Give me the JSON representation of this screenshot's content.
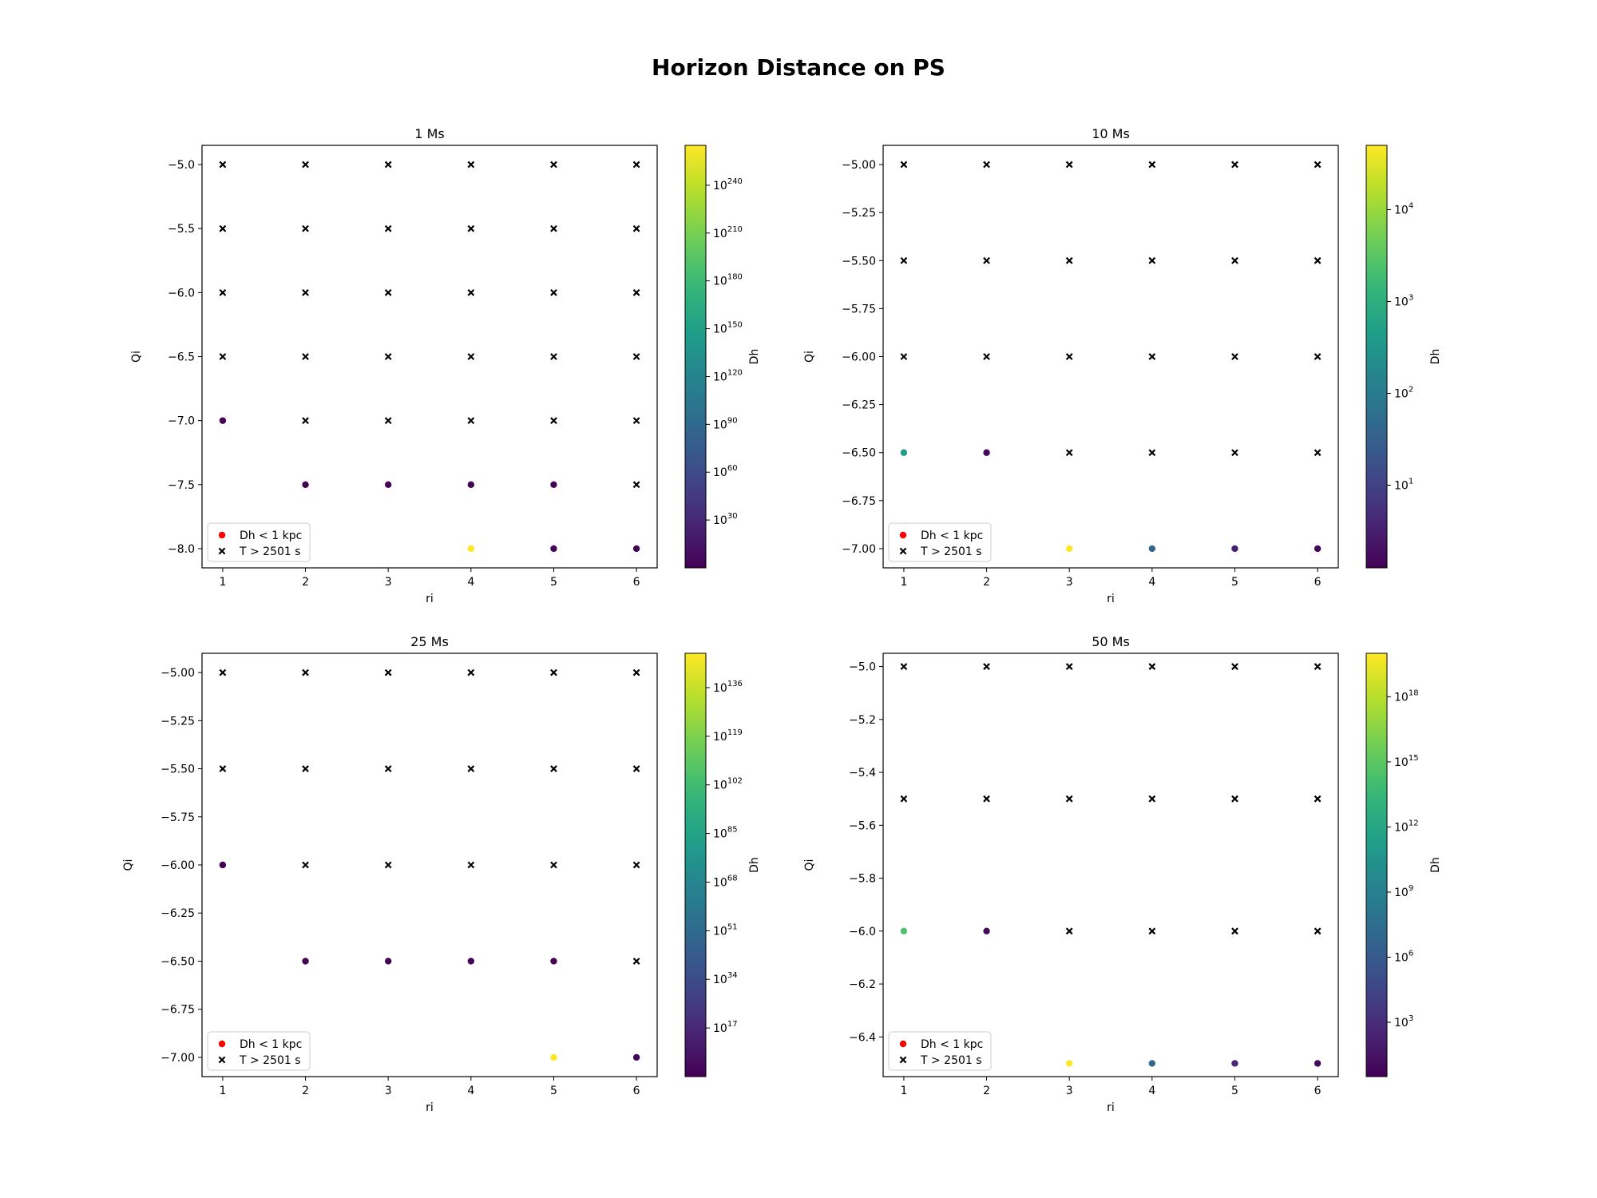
{
  "title": "Horizon Distance on PS",
  "chart_data": [
    {
      "type": "scatter",
      "title": "1 Ms",
      "xlabel": "ri",
      "ylabel": "Qi",
      "colorbar_label": "Dh",
      "colormap": "viridis",
      "xlim": [
        0.75,
        6.25
      ],
      "ylim": [
        -8.15,
        -4.85
      ],
      "x_ticks": [
        1,
        2,
        3,
        4,
        5,
        6
      ],
      "y_ticks": [
        -5.0,
        -5.5,
        -6.0,
        -6.5,
        -7.0,
        -7.5,
        -8.0
      ],
      "y_tick_labels": [
        "−5.0",
        "−5.5",
        "−6.0",
        "−6.5",
        "−7.0",
        "−7.5",
        "−8.0"
      ],
      "colorbar_log_exponent_range": [
        0,
        265
      ],
      "colorbar_tick_exponents": [
        "30",
        "60",
        "90",
        "120",
        "150",
        "180",
        "210",
        "240"
      ],
      "legend_position": "lower-left",
      "legend": [
        {
          "marker": "dot",
          "color": "#ff0000",
          "label": "Dh < 1 kpc"
        },
        {
          "marker": "cross",
          "color": "#000000",
          "label": "T > 2501 s"
        }
      ],
      "dh_points": [
        {
          "x": 1,
          "y": -7.0,
          "log10_dh": 0.5
        },
        {
          "x": 2,
          "y": -7.5,
          "log10_dh": 0.5
        },
        {
          "x": 3,
          "y": -7.5,
          "log10_dh": 0.5
        },
        {
          "x": 4,
          "y": -7.5,
          "log10_dh": 0.5
        },
        {
          "x": 5,
          "y": -7.5,
          "log10_dh": 0.5
        },
        {
          "x": 4,
          "y": -8.0,
          "log10_dh": 265
        },
        {
          "x": 5,
          "y": -8.0,
          "log10_dh": 3
        },
        {
          "x": 6,
          "y": -8.0,
          "log10_dh": 0.5
        }
      ],
      "t_exceeded_points": [
        [
          1,
          -5.0
        ],
        [
          2,
          -5.0
        ],
        [
          3,
          -5.0
        ],
        [
          4,
          -5.0
        ],
        [
          5,
          -5.0
        ],
        [
          6,
          -5.0
        ],
        [
          1,
          -5.5
        ],
        [
          2,
          -5.5
        ],
        [
          3,
          -5.5
        ],
        [
          4,
          -5.5
        ],
        [
          5,
          -5.5
        ],
        [
          6,
          -5.5
        ],
        [
          1,
          -6.0
        ],
        [
          2,
          -6.0
        ],
        [
          3,
          -6.0
        ],
        [
          4,
          -6.0
        ],
        [
          5,
          -6.0
        ],
        [
          6,
          -6.0
        ],
        [
          1,
          -6.5
        ],
        [
          2,
          -6.5
        ],
        [
          3,
          -6.5
        ],
        [
          4,
          -6.5
        ],
        [
          5,
          -6.5
        ],
        [
          6,
          -6.5
        ],
        [
          2,
          -7.0
        ],
        [
          3,
          -7.0
        ],
        [
          4,
          -7.0
        ],
        [
          5,
          -7.0
        ],
        [
          6,
          -7.0
        ],
        [
          6,
          -7.5
        ]
      ]
    },
    {
      "type": "scatter",
      "title": "10 Ms",
      "xlabel": "ri",
      "ylabel": "Qi",
      "colorbar_label": "Dh",
      "colormap": "viridis",
      "xlim": [
        0.75,
        6.25
      ],
      "ylim": [
        -7.1,
        -4.9
      ],
      "x_ticks": [
        1,
        2,
        3,
        4,
        5,
        6
      ],
      "y_ticks": [
        -5.0,
        -5.25,
        -5.5,
        -5.75,
        -6.0,
        -6.25,
        -6.5,
        -6.75,
        -7.0
      ],
      "y_tick_labels": [
        "−5.00",
        "−5.25",
        "−5.50",
        "−5.75",
        "−6.00",
        "−6.25",
        "−6.50",
        "−6.75",
        "−7.00"
      ],
      "colorbar_log_exponent_range": [
        0.1,
        4.7
      ],
      "colorbar_tick_exponents": [
        "1",
        "2",
        "3",
        "4"
      ],
      "legend_position": "lower-left",
      "legend": [
        {
          "marker": "dot",
          "color": "#ff0000",
          "label": "Dh < 1 kpc"
        },
        {
          "marker": "cross",
          "color": "#000000",
          "label": "T > 2501 s"
        }
      ],
      "dh_points": [
        {
          "x": 1,
          "y": -6.5,
          "log10_dh": 2.6
        },
        {
          "x": 2,
          "y": -6.5,
          "log10_dh": 0.2
        },
        {
          "x": 3,
          "y": -7.0,
          "log10_dh": 4.7
        },
        {
          "x": 4,
          "y": -7.0,
          "log10_dh": 1.6
        },
        {
          "x": 5,
          "y": -7.0,
          "log10_dh": 0.5
        },
        {
          "x": 6,
          "y": -7.0,
          "log10_dh": 0.2
        }
      ],
      "t_exceeded_points": [
        [
          1,
          -5.0
        ],
        [
          2,
          -5.0
        ],
        [
          3,
          -5.0
        ],
        [
          4,
          -5.0
        ],
        [
          5,
          -5.0
        ],
        [
          6,
          -5.0
        ],
        [
          1,
          -5.5
        ],
        [
          2,
          -5.5
        ],
        [
          3,
          -5.5
        ],
        [
          4,
          -5.5
        ],
        [
          5,
          -5.5
        ],
        [
          6,
          -5.5
        ],
        [
          1,
          -6.0
        ],
        [
          2,
          -6.0
        ],
        [
          3,
          -6.0
        ],
        [
          4,
          -6.0
        ],
        [
          5,
          -6.0
        ],
        [
          6,
          -6.0
        ],
        [
          3,
          -6.5
        ],
        [
          4,
          -6.5
        ],
        [
          5,
          -6.5
        ],
        [
          6,
          -6.5
        ]
      ]
    },
    {
      "type": "scatter",
      "title": "25 Ms",
      "xlabel": "ri",
      "ylabel": "Qi",
      "colorbar_label": "Dh",
      "colormap": "viridis",
      "xlim": [
        0.75,
        6.25
      ],
      "ylim": [
        -7.1,
        -4.9
      ],
      "x_ticks": [
        1,
        2,
        3,
        4,
        5,
        6
      ],
      "y_ticks": [
        -5.0,
        -5.25,
        -5.5,
        -5.75,
        -6.0,
        -6.25,
        -6.5,
        -6.75,
        -7.0
      ],
      "y_tick_labels": [
        "−5.00",
        "−5.25",
        "−5.50",
        "−5.75",
        "−6.00",
        "−6.25",
        "−6.50",
        "−6.75",
        "−7.00"
      ],
      "colorbar_log_exponent_range": [
        0,
        148
      ],
      "colorbar_tick_exponents": [
        "17",
        "34",
        "51",
        "68",
        "85",
        "102",
        "119",
        "136"
      ],
      "legend_position": "lower-left",
      "legend": [
        {
          "marker": "dot",
          "color": "#ff0000",
          "label": "Dh < 1 kpc"
        },
        {
          "marker": "cross",
          "color": "#000000",
          "label": "T > 2501 s"
        }
      ],
      "dh_points": [
        {
          "x": 1,
          "y": -6.0,
          "log10_dh": 0.5
        },
        {
          "x": 2,
          "y": -6.5,
          "log10_dh": 0.5
        },
        {
          "x": 3,
          "y": -6.5,
          "log10_dh": 0.5
        },
        {
          "x": 4,
          "y": -6.5,
          "log10_dh": 0.5
        },
        {
          "x": 5,
          "y": -6.5,
          "log10_dh": 0.5
        },
        {
          "x": 5,
          "y": -7.0,
          "log10_dh": 148
        },
        {
          "x": 6,
          "y": -7.0,
          "log10_dh": 2
        }
      ],
      "t_exceeded_points": [
        [
          1,
          -5.0
        ],
        [
          2,
          -5.0
        ],
        [
          3,
          -5.0
        ],
        [
          4,
          -5.0
        ],
        [
          5,
          -5.0
        ],
        [
          6,
          -5.0
        ],
        [
          1,
          -5.5
        ],
        [
          2,
          -5.5
        ],
        [
          3,
          -5.5
        ],
        [
          4,
          -5.5
        ],
        [
          5,
          -5.5
        ],
        [
          6,
          -5.5
        ],
        [
          2,
          -6.0
        ],
        [
          3,
          -6.0
        ],
        [
          4,
          -6.0
        ],
        [
          5,
          -6.0
        ],
        [
          6,
          -6.0
        ],
        [
          6,
          -6.5
        ]
      ]
    },
    {
      "type": "scatter",
      "title": "50 Ms",
      "xlabel": "ri",
      "ylabel": "Qi",
      "colorbar_label": "Dh",
      "colormap": "viridis",
      "xlim": [
        0.75,
        6.25
      ],
      "ylim": [
        -6.55,
        -4.95
      ],
      "x_ticks": [
        1,
        2,
        3,
        4,
        5,
        6
      ],
      "y_ticks": [
        -5.0,
        -5.2,
        -5.4,
        -5.6,
        -5.8,
        -6.0,
        -6.2,
        -6.4
      ],
      "y_tick_labels": [
        "−5.0",
        "−5.2",
        "−5.4",
        "−5.6",
        "−5.8",
        "−6.0",
        "−6.2",
        "−6.4"
      ],
      "colorbar_log_exponent_range": [
        0.5,
        20
      ],
      "colorbar_tick_exponents": [
        "3",
        "6",
        "9",
        "12",
        "15",
        "18"
      ],
      "legend_position": "lower-left",
      "legend": [
        {
          "marker": "dot",
          "color": "#ff0000",
          "label": "Dh < 1 kpc"
        },
        {
          "marker": "cross",
          "color": "#000000",
          "label": "T > 2501 s"
        }
      ],
      "dh_points": [
        {
          "x": 1,
          "y": -6.0,
          "log10_dh": 14.5
        },
        {
          "x": 2,
          "y": -6.0,
          "log10_dh": 1
        },
        {
          "x": 3,
          "y": -6.5,
          "log10_dh": 20
        },
        {
          "x": 4,
          "y": -6.5,
          "log10_dh": 7
        },
        {
          "x": 5,
          "y": -6.5,
          "log10_dh": 2.5
        },
        {
          "x": 6,
          "y": -6.5,
          "log10_dh": 1
        }
      ],
      "t_exceeded_points": [
        [
          1,
          -5.0
        ],
        [
          2,
          -5.0
        ],
        [
          3,
          -5.0
        ],
        [
          4,
          -5.0
        ],
        [
          5,
          -5.0
        ],
        [
          6,
          -5.0
        ],
        [
          1,
          -5.5
        ],
        [
          2,
          -5.5
        ],
        [
          3,
          -5.5
        ],
        [
          4,
          -5.5
        ],
        [
          5,
          -5.5
        ],
        [
          6,
          -5.5
        ],
        [
          3,
          -6.0
        ],
        [
          4,
          -6.0
        ],
        [
          5,
          -6.0
        ],
        [
          6,
          -6.0
        ]
      ]
    }
  ]
}
